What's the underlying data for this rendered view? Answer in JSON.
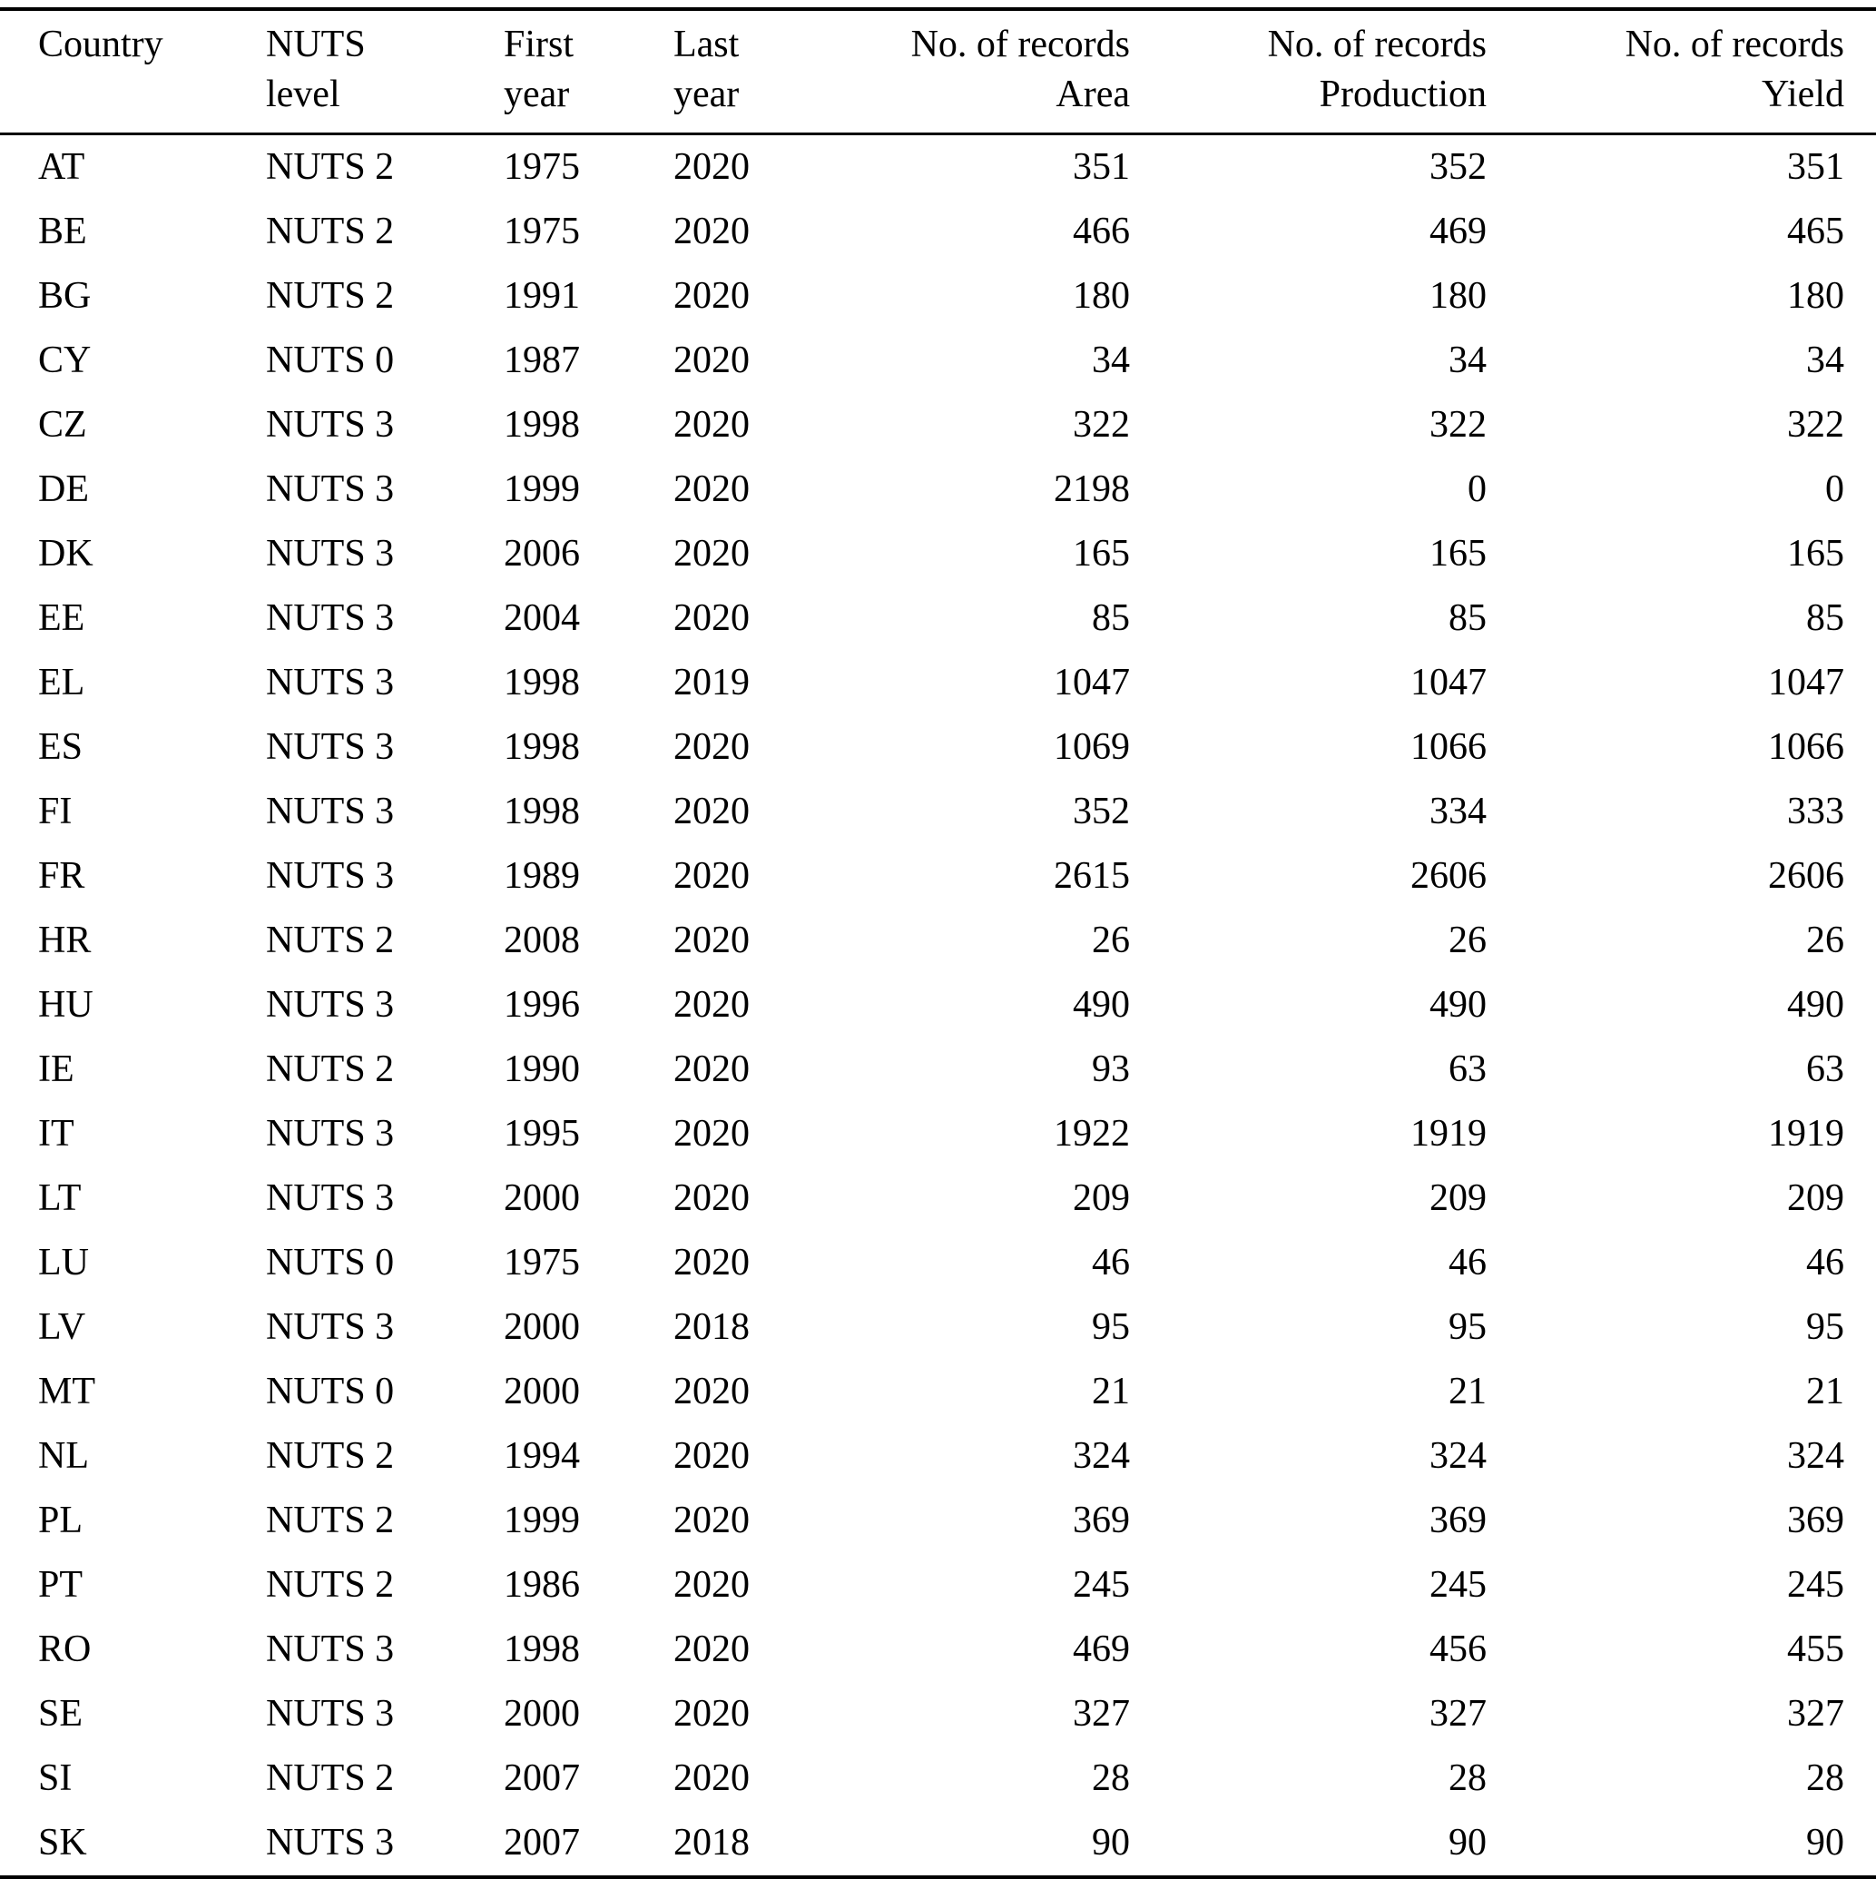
{
  "table": {
    "columns": [
      {
        "line1": "Country",
        "line2": ""
      },
      {
        "line1": "NUTS",
        "line2": "level"
      },
      {
        "line1": "First",
        "line2": "year"
      },
      {
        "line1": "Last",
        "line2": "year"
      },
      {
        "line1": "No. of records",
        "line2": "Area"
      },
      {
        "line1": "No. of records",
        "line2": "Production"
      },
      {
        "line1": "No. of records",
        "line2": "Yield"
      }
    ],
    "rows": [
      [
        "AT",
        "NUTS 2",
        "1975",
        "2020",
        "351",
        "352",
        "351"
      ],
      [
        "BE",
        "NUTS 2",
        "1975",
        "2020",
        "466",
        "469",
        "465"
      ],
      [
        "BG",
        "NUTS 2",
        "1991",
        "2020",
        "180",
        "180",
        "180"
      ],
      [
        "CY",
        "NUTS 0",
        "1987",
        "2020",
        "34",
        "34",
        "34"
      ],
      [
        "CZ",
        "NUTS 3",
        "1998",
        "2020",
        "322",
        "322",
        "322"
      ],
      [
        "DE",
        "NUTS 3",
        "1999",
        "2020",
        "2198",
        "0",
        "0"
      ],
      [
        "DK",
        "NUTS 3",
        "2006",
        "2020",
        "165",
        "165",
        "165"
      ],
      [
        "EE",
        "NUTS 3",
        "2004",
        "2020",
        "85",
        "85",
        "85"
      ],
      [
        "EL",
        "NUTS 3",
        "1998",
        "2019",
        "1047",
        "1047",
        "1047"
      ],
      [
        "ES",
        "NUTS 3",
        "1998",
        "2020",
        "1069",
        "1066",
        "1066"
      ],
      [
        "FI",
        "NUTS 3",
        "1998",
        "2020",
        "352",
        "334",
        "333"
      ],
      [
        "FR",
        "NUTS 3",
        "1989",
        "2020",
        "2615",
        "2606",
        "2606"
      ],
      [
        "HR",
        "NUTS 2",
        "2008",
        "2020",
        "26",
        "26",
        "26"
      ],
      [
        "HU",
        "NUTS 3",
        "1996",
        "2020",
        "490",
        "490",
        "490"
      ],
      [
        "IE",
        "NUTS 2",
        "1990",
        "2020",
        "93",
        "63",
        "63"
      ],
      [
        "IT",
        "NUTS 3",
        "1995",
        "2020",
        "1922",
        "1919",
        "1919"
      ],
      [
        "LT",
        "NUTS 3",
        "2000",
        "2020",
        "209",
        "209",
        "209"
      ],
      [
        "LU",
        "NUTS 0",
        "1975",
        "2020",
        "46",
        "46",
        "46"
      ],
      [
        "LV",
        "NUTS 3",
        "2000",
        "2018",
        "95",
        "95",
        "95"
      ],
      [
        "MT",
        "NUTS 0",
        "2000",
        "2020",
        "21",
        "21",
        "21"
      ],
      [
        "NL",
        "NUTS 2",
        "1994",
        "2020",
        "324",
        "324",
        "324"
      ],
      [
        "PL",
        "NUTS 2",
        "1999",
        "2020",
        "369",
        "369",
        "369"
      ],
      [
        "PT",
        "NUTS 2",
        "1986",
        "2020",
        "245",
        "245",
        "245"
      ],
      [
        "RO",
        "NUTS 3",
        "1998",
        "2020",
        "469",
        "456",
        "455"
      ],
      [
        "SE",
        "NUTS 3",
        "2000",
        "2020",
        "327",
        "327",
        "327"
      ],
      [
        "SI",
        "NUTS 2",
        "2007",
        "2020",
        "28",
        "28",
        "28"
      ],
      [
        "SK",
        "NUTS 3",
        "2007",
        "2018",
        "90",
        "90",
        "90"
      ]
    ]
  }
}
